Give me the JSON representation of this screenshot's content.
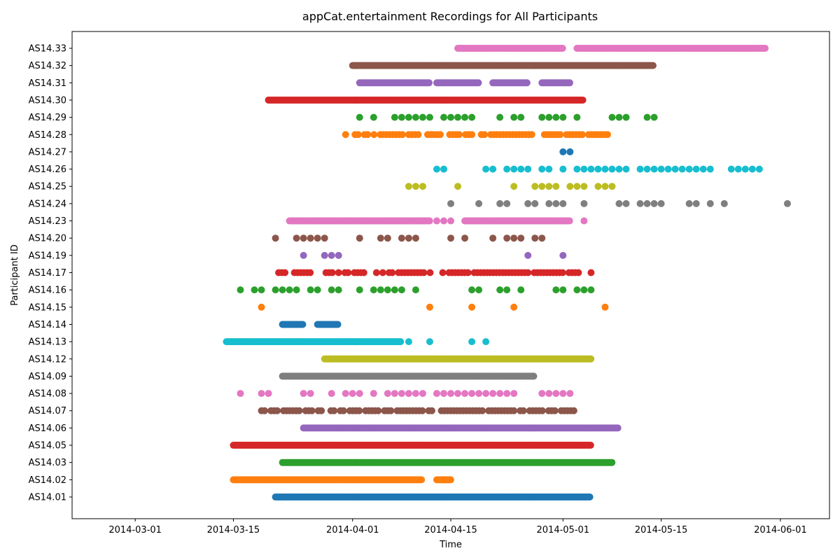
{
  "chart_data": {
    "type": "scatter",
    "title": "appCat.entertainment Recordings for All Participants",
    "xlabel": "Time",
    "ylabel": "Participant ID",
    "x_ticks": [
      "2014-03-01",
      "2014-03-15",
      "2014-04-01",
      "2014-04-15",
      "2014-05-01",
      "2014-05-15",
      "2014-06-01"
    ],
    "xlim": [
      "2014-02-20",
      "2014-06-08"
    ],
    "grid": false,
    "categories": [
      "AS14.01",
      "AS14.02",
      "AS14.03",
      "AS14.05",
      "AS14.06",
      "AS14.07",
      "AS14.08",
      "AS14.09",
      "AS14.12",
      "AS14.13",
      "AS14.14",
      "AS14.15",
      "AS14.16",
      "AS14.17",
      "AS14.19",
      "AS14.20",
      "AS14.23",
      "AS14.24",
      "AS14.25",
      "AS14.26",
      "AS14.27",
      "AS14.28",
      "AS14.29",
      "AS14.30",
      "AS14.31",
      "AS14.32",
      "AS14.33"
    ],
    "colors": [
      "#1f77b4",
      "#ff7f0e",
      "#2ca02c",
      "#d62728",
      "#9467bd",
      "#8c564b",
      "#e377c2",
      "#7f7f7f",
      "#bcbd22",
      "#17becf"
    ],
    "series": [
      {
        "id": "AS14.01",
        "ranges": [
          [
            "2014-03-21",
            "2014-05-05"
          ]
        ]
      },
      {
        "id": "AS14.02",
        "ranges": [
          [
            "2014-03-15",
            "2014-04-11"
          ],
          [
            "2014-04-13",
            "2014-04-15"
          ]
        ]
      },
      {
        "id": "AS14.03",
        "ranges": [
          [
            "2014-03-22",
            "2014-05-08"
          ]
        ]
      },
      {
        "id": "AS14.05",
        "ranges": [
          [
            "2014-03-15",
            "2014-05-05"
          ]
        ]
      },
      {
        "id": "AS14.06",
        "ranges": [
          [
            "2014-03-25",
            "2014-05-09"
          ]
        ]
      },
      {
        "id": "AS14.07",
        "ranges": [
          [
            "2014-03-19",
            "2014-05-03"
          ]
        ],
        "sparse": true
      },
      {
        "id": "AS14.08",
        "points": [
          "2014-03-16",
          "2014-03-19",
          "2014-03-20",
          "2014-03-25",
          "2014-03-26",
          "2014-03-29",
          "2014-03-31",
          "2014-04-01",
          "2014-04-02",
          "2014-04-04",
          "2014-04-06",
          "2014-04-07",
          "2014-04-08",
          "2014-04-09",
          "2014-04-10",
          "2014-04-11",
          "2014-04-13",
          "2014-04-14",
          "2014-04-15",
          "2014-04-16",
          "2014-04-17",
          "2014-04-18",
          "2014-04-19",
          "2014-04-20",
          "2014-04-21",
          "2014-04-22",
          "2014-04-23",
          "2014-04-24",
          "2014-04-28",
          "2014-04-29",
          "2014-04-30",
          "2014-05-01",
          "2014-05-02"
        ]
      },
      {
        "id": "AS14.09",
        "ranges": [
          [
            "2014-03-22",
            "2014-04-27"
          ]
        ]
      },
      {
        "id": "AS14.12",
        "ranges": [
          [
            "2014-03-28",
            "2014-05-05"
          ]
        ]
      },
      {
        "id": "AS14.13",
        "ranges": [
          [
            "2014-03-14",
            "2014-04-08"
          ]
        ],
        "extra": [
          "2014-04-09",
          "2014-04-12",
          "2014-04-18",
          "2014-04-20"
        ]
      },
      {
        "id": "AS14.14",
        "ranges": [
          [
            "2014-03-22",
            "2014-03-25"
          ],
          [
            "2014-03-27",
            "2014-03-30"
          ]
        ]
      },
      {
        "id": "AS14.15",
        "points": [
          "2014-03-19",
          "2014-04-12",
          "2014-04-18",
          "2014-04-24",
          "2014-05-07"
        ]
      },
      {
        "id": "AS14.16",
        "points": [
          "2014-03-16",
          "2014-03-18",
          "2014-03-19",
          "2014-03-21",
          "2014-03-22",
          "2014-03-23",
          "2014-03-24",
          "2014-03-26",
          "2014-03-27",
          "2014-03-29",
          "2014-03-30",
          "2014-04-02",
          "2014-04-04",
          "2014-04-05",
          "2014-04-06",
          "2014-04-07",
          "2014-04-08",
          "2014-04-10",
          "2014-04-18",
          "2014-04-19",
          "2014-04-22",
          "2014-04-23",
          "2014-04-25",
          "2014-04-30",
          "2014-05-01",
          "2014-05-03",
          "2014-05-04",
          "2014-05-05"
        ]
      },
      {
        "id": "AS14.17",
        "ranges": [
          [
            "2014-03-21",
            "2014-05-04"
          ]
        ],
        "sparse": true,
        "extra": [
          "2014-05-05"
        ]
      },
      {
        "id": "AS14.19",
        "points": [
          "2014-03-25",
          "2014-03-28",
          "2014-03-29",
          "2014-03-30",
          "2014-04-26",
          "2014-05-01"
        ]
      },
      {
        "id": "AS14.20",
        "points": [
          "2014-03-21",
          "2014-03-24",
          "2014-03-25",
          "2014-03-26",
          "2014-03-27",
          "2014-03-28",
          "2014-04-02",
          "2014-04-05",
          "2014-04-06",
          "2014-04-08",
          "2014-04-09",
          "2014-04-10",
          "2014-04-15",
          "2014-04-17",
          "2014-04-21",
          "2014-04-23",
          "2014-04-24",
          "2014-04-25",
          "2014-04-27",
          "2014-04-28"
        ]
      },
      {
        "id": "AS14.23",
        "ranges": [
          [
            "2014-03-23",
            "2014-04-12"
          ],
          [
            "2014-04-17",
            "2014-05-02"
          ]
        ],
        "extra": [
          "2014-04-13",
          "2014-04-14",
          "2014-04-15",
          "2014-05-04"
        ]
      },
      {
        "id": "AS14.24",
        "points": [
          "2014-04-15",
          "2014-04-19",
          "2014-04-22",
          "2014-04-23",
          "2014-04-26",
          "2014-04-27",
          "2014-04-29",
          "2014-04-30",
          "2014-05-01",
          "2014-05-04",
          "2014-05-09",
          "2014-05-10",
          "2014-05-12",
          "2014-05-13",
          "2014-05-14",
          "2014-05-15",
          "2014-05-19",
          "2014-05-20",
          "2014-05-22",
          "2014-05-24",
          "2014-06-02"
        ]
      },
      {
        "id": "AS14.25",
        "points": [
          "2014-04-09",
          "2014-04-10",
          "2014-04-11",
          "2014-04-16",
          "2014-04-24",
          "2014-04-27",
          "2014-04-28",
          "2014-04-29",
          "2014-04-30",
          "2014-05-02",
          "2014-05-03",
          "2014-05-04",
          "2014-05-06",
          "2014-05-07",
          "2014-05-08"
        ]
      },
      {
        "id": "AS14.26",
        "points": [
          "2014-04-13",
          "2014-04-14",
          "2014-04-20",
          "2014-04-21",
          "2014-04-23",
          "2014-04-24",
          "2014-04-25",
          "2014-04-26",
          "2014-04-28",
          "2014-04-29",
          "2014-05-01",
          "2014-05-03",
          "2014-05-04",
          "2014-05-05",
          "2014-05-06",
          "2014-05-07",
          "2014-05-08",
          "2014-05-09",
          "2014-05-10",
          "2014-05-12",
          "2014-05-13",
          "2014-05-14",
          "2014-05-15",
          "2014-05-16",
          "2014-05-17",
          "2014-05-18",
          "2014-05-19",
          "2014-05-20",
          "2014-05-21",
          "2014-05-22",
          "2014-05-25",
          "2014-05-26",
          "2014-05-27",
          "2014-05-28",
          "2014-05-29"
        ]
      },
      {
        "id": "AS14.27",
        "points": [
          "2014-05-01",
          "2014-05-02"
        ]
      },
      {
        "id": "AS14.28",
        "ranges": [
          [
            "2014-03-31",
            "2014-05-08"
          ]
        ],
        "sparse": true
      },
      {
        "id": "AS14.29",
        "points": [
          "2014-04-02",
          "2014-04-04",
          "2014-04-07",
          "2014-04-08",
          "2014-04-09",
          "2014-04-10",
          "2014-04-11",
          "2014-04-12",
          "2014-04-14",
          "2014-04-15",
          "2014-04-16",
          "2014-04-17",
          "2014-04-18",
          "2014-04-22",
          "2014-04-24",
          "2014-04-25",
          "2014-04-28",
          "2014-04-29",
          "2014-04-30",
          "2014-05-01",
          "2014-05-03",
          "2014-05-08",
          "2014-05-09",
          "2014-05-10",
          "2014-05-13",
          "2014-05-14"
        ]
      },
      {
        "id": "AS14.30",
        "ranges": [
          [
            "2014-03-20",
            "2014-05-04"
          ]
        ]
      },
      {
        "id": "AS14.31",
        "ranges": [
          [
            "2014-04-02",
            "2014-04-12"
          ],
          [
            "2014-04-13",
            "2014-04-19"
          ],
          [
            "2014-04-21",
            "2014-04-26"
          ],
          [
            "2014-04-28",
            "2014-05-02"
          ]
        ]
      },
      {
        "id": "AS14.32",
        "ranges": [
          [
            "2014-04-01",
            "2014-05-14"
          ]
        ]
      },
      {
        "id": "AS14.33",
        "ranges": [
          [
            "2014-04-16",
            "2014-05-01"
          ],
          [
            "2014-05-03",
            "2014-05-30"
          ]
        ]
      }
    ]
  }
}
